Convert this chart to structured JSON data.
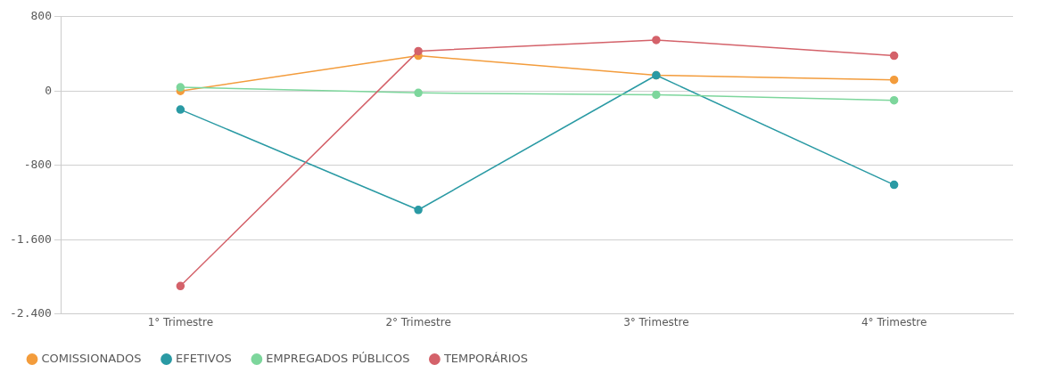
{
  "chart_data": {
    "type": "line",
    "categories": [
      "1° Trimestre",
      "2° Trimestre",
      "3° Trimestre",
      "4° Trimestre"
    ],
    "series": [
      {
        "name": "COMISSIONADOS",
        "color": "#f39c3c",
        "values": [
          0,
          380,
          170,
          120
        ]
      },
      {
        "name": "EFETIVOS",
        "color": "#2a9aa4",
        "values": [
          -200,
          -1280,
          170,
          -1010
        ]
      },
      {
        "name": "EMPREGADOS PÚBLICOS",
        "color": "#7dd69c",
        "values": [
          40,
          -20,
          -40,
          -100
        ]
      },
      {
        "name": "TEMPORÁRIOS",
        "color": "#d4626a",
        "values": [
          -2100,
          430,
          550,
          380
        ]
      }
    ],
    "ylim": [
      -2400,
      800
    ],
    "yticks": [
      {
        "value": -2400,
        "label": "-2.400"
      },
      {
        "value": -1600,
        "label": "-1.600"
      },
      -800,
      0,
      800
    ],
    "grid": "y",
    "legend": "bottom",
    "marker": "circle",
    "line_style": "solid"
  }
}
